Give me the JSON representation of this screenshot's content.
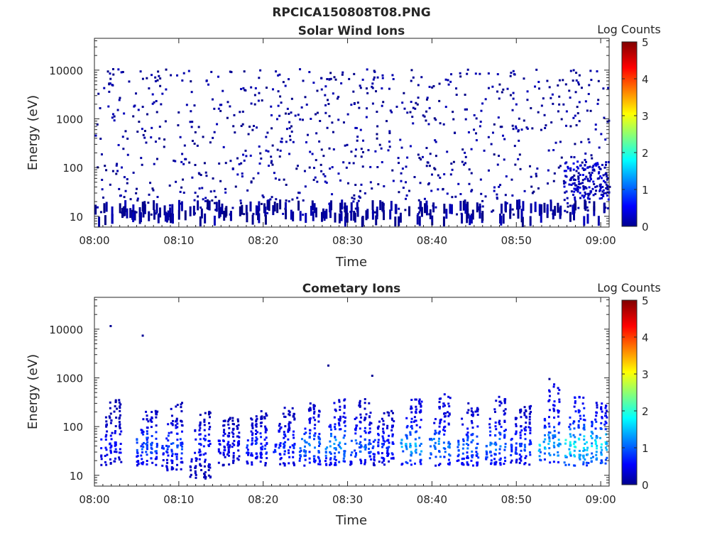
{
  "figure_title": "RPCICA150808T08.PNG",
  "chart_data": [
    {
      "type": "heatmap",
      "title": "Solar Wind Ions",
      "xlabel": "Time",
      "ylabel": "Energy (eV)",
      "x_ticks": [
        "08:00",
        "08:10",
        "08:20",
        "08:30",
        "08:40",
        "08:50",
        "09:00"
      ],
      "xlim": [
        "08:00",
        "09:01"
      ],
      "y_scale": "log",
      "y_ticks": [
        "10",
        "100",
        "1000",
        "10000"
      ],
      "ylim": [
        6,
        45000
      ],
      "colorbar": {
        "label": "Log Counts",
        "range": [
          0,
          5
        ],
        "ticks": [
          "0",
          "1",
          "2",
          "3",
          "4",
          "5"
        ],
        "colormap": "jet"
      },
      "dominant_value": "mostly isolated single-count pixels (log counts ~0-0.3) scattered across 10 eV - 10 keV; denser low-energy counts (20-100 eV) near 08:56-09:01 reaching ~0.5"
    },
    {
      "type": "heatmap",
      "title": "Cometary Ions",
      "xlabel": "Time",
      "ylabel": "Energy (eV)",
      "x_ticks": [
        "08:00",
        "08:10",
        "08:20",
        "08:30",
        "08:40",
        "08:50",
        "09:00"
      ],
      "xlim": [
        "08:00",
        "09:01"
      ],
      "y_scale": "log",
      "y_ticks": [
        "10",
        "100",
        "1000",
        "10000"
      ],
      "ylim": [
        6,
        45000
      ],
      "colorbar": {
        "label": "Log Counts",
        "range": [
          0,
          5
        ],
        "ticks": [
          "0",
          "1",
          "2",
          "3",
          "4",
          "5"
        ],
        "colormap": "jet"
      },
      "bursts": [
        {
          "time_min": 2.0,
          "emin": 15,
          "emax": 350,
          "peak_log_counts": 0.8
        },
        {
          "time_min": 6.3,
          "emin": 15,
          "emax": 200,
          "peak_log_counts": 1.2
        },
        {
          "time_min": 9.3,
          "emin": 12,
          "emax": 300,
          "peak_log_counts": 1.1
        },
        {
          "time_min": 12.6,
          "emin": 8,
          "emax": 200,
          "peak_log_counts": 0.9
        },
        {
          "time_min": 16.0,
          "emin": 15,
          "emax": 150,
          "peak_log_counts": 0.7
        },
        {
          "time_min": 19.3,
          "emin": 15,
          "emax": 200,
          "peak_log_counts": 1.0
        },
        {
          "time_min": 22.6,
          "emin": 15,
          "emax": 250,
          "peak_log_counts": 1.0
        },
        {
          "time_min": 25.6,
          "emin": 15,
          "emax": 350,
          "peak_log_counts": 1.4
        },
        {
          "time_min": 28.6,
          "emin": 15,
          "emax": 350,
          "peak_log_counts": 1.6
        },
        {
          "time_min": 31.6,
          "emin": 15,
          "emax": 350,
          "peak_log_counts": 1.3
        },
        {
          "time_min": 34.3,
          "emin": 15,
          "emax": 200,
          "peak_log_counts": 1.0
        },
        {
          "time_min": 37.6,
          "emin": 15,
          "emax": 350,
          "peak_log_counts": 1.7
        },
        {
          "time_min": 41.0,
          "emin": 15,
          "emax": 450,
          "peak_log_counts": 1.5
        },
        {
          "time_min": 44.3,
          "emin": 15,
          "emax": 300,
          "peak_log_counts": 1.3
        },
        {
          "time_min": 47.6,
          "emin": 15,
          "emax": 400,
          "peak_log_counts": 1.4
        },
        {
          "time_min": 50.6,
          "emin": 15,
          "emax": 250,
          "peak_log_counts": 1.1
        },
        {
          "time_min": 54.0,
          "emin": 15,
          "emax": 700,
          "peak_log_counts": 1.8
        },
        {
          "time_min": 57.0,
          "emin": 15,
          "emax": 400,
          "peak_log_counts": 2.2
        },
        {
          "time_min": 59.6,
          "emin": 15,
          "emax": 300,
          "peak_log_counts": 2.0
        }
      ],
      "isolated_points": [
        {
          "time_min": 1.8,
          "energy_ev": 11000,
          "log_counts": 0.1
        },
        {
          "time_min": 5.6,
          "energy_ev": 7000,
          "log_counts": 0.1
        },
        {
          "time_min": 27.6,
          "energy_ev": 1700,
          "log_counts": 0.1
        },
        {
          "time_min": 32.8,
          "energy_ev": 1050,
          "log_counts": 0.1
        },
        {
          "time_min": 53.8,
          "energy_ev": 900,
          "log_counts": 0.1
        }
      ]
    }
  ]
}
